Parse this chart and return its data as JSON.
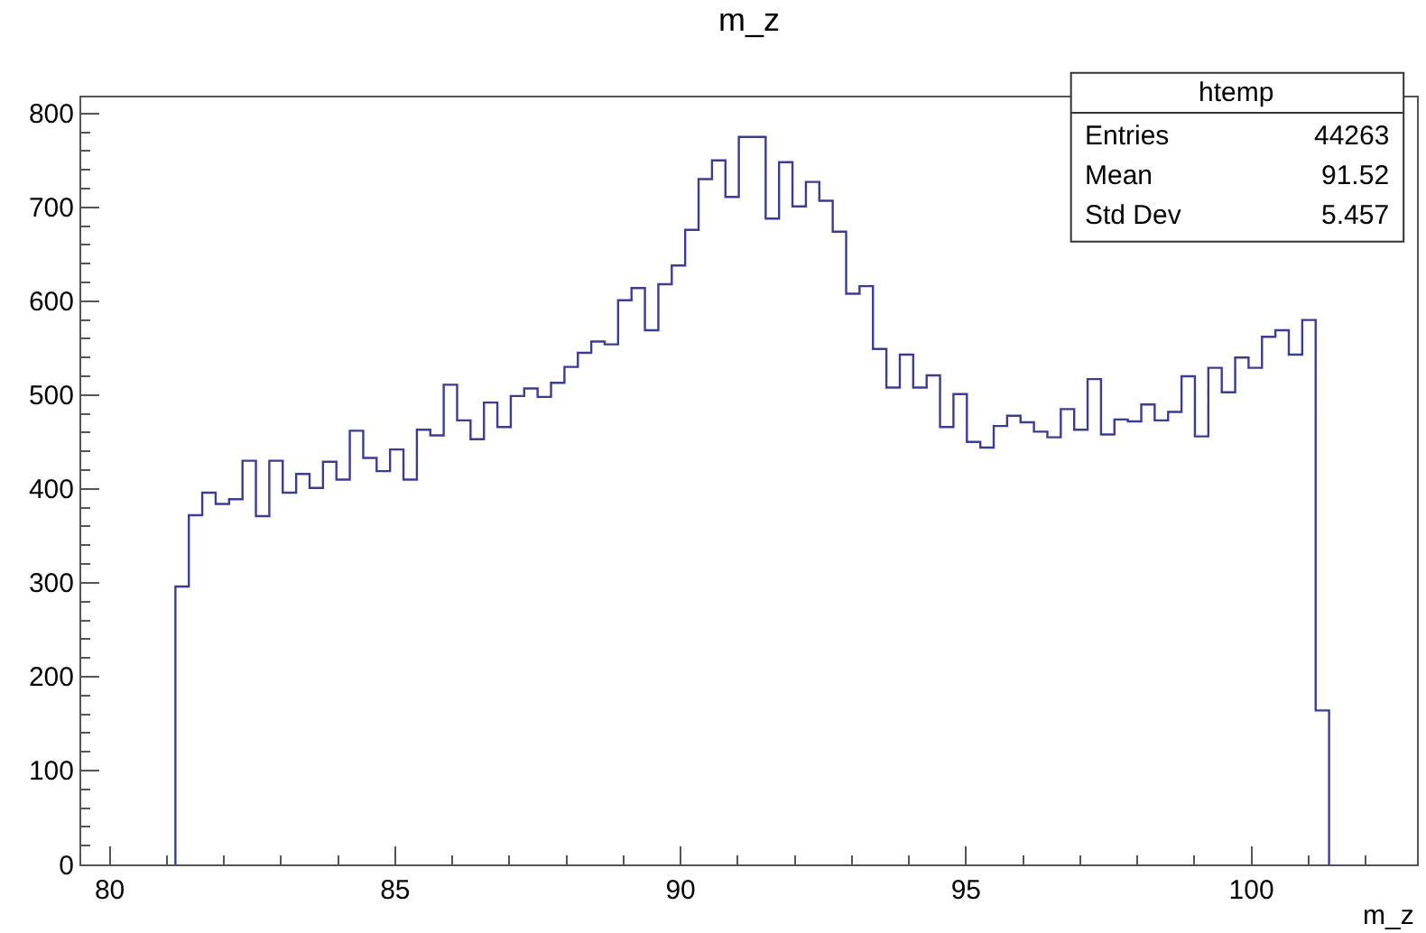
{
  "chart_data": {
    "type": "histogram",
    "title": "m_z",
    "xlabel": "m_z",
    "bins": [
      81.15,
      81.385,
      81.62,
      81.855,
      82.09,
      82.325,
      82.56,
      82.795,
      83.03,
      83.265,
      83.5,
      83.735,
      83.97,
      84.205,
      84.44,
      84.675,
      84.91,
      85.145,
      85.38,
      85.615,
      85.85,
      86.085,
      86.32,
      86.555,
      86.79,
      87.025,
      87.26,
      87.495,
      87.73,
      87.965,
      88.2,
      88.435,
      88.67,
      88.905,
      89.14,
      89.375,
      89.61,
      89.845,
      90.08,
      90.315,
      90.55,
      90.785,
      91.02,
      91.255,
      91.49,
      91.725,
      91.96,
      92.195,
      92.43,
      92.665,
      92.9,
      93.135,
      93.37,
      93.605,
      93.84,
      94.075,
      94.31,
      94.545,
      94.78,
      95.015,
      95.25,
      95.485,
      95.72,
      95.955,
      96.19,
      96.425,
      96.66,
      96.895,
      97.13,
      97.365,
      97.6,
      97.835,
      98.07,
      98.305,
      98.54,
      98.775,
      99.01,
      99.245,
      99.48,
      99.715,
      99.95,
      100.185,
      100.42,
      100.655,
      100.89,
      101.125,
      101.36
    ],
    "values": [
      296,
      372,
      396,
      384,
      389,
      430,
      371,
      430,
      396,
      416,
      401,
      429,
      410,
      462,
      433,
      419,
      442,
      410,
      463,
      457,
      511,
      473,
      453,
      492,
      466,
      499,
      507,
      498,
      513,
      530,
      545,
      557,
      554,
      601,
      614,
      569,
      618,
      638,
      676,
      730,
      750,
      711,
      775,
      775,
      688,
      748,
      701,
      727,
      707,
      674,
      608,
      616,
      549,
      508,
      543,
      508,
      521,
      466,
      501,
      450,
      444,
      467,
      478,
      471,
      461,
      455,
      485,
      463,
      517,
      458,
      474,
      472,
      490,
      473,
      482,
      520,
      456,
      529,
      503,
      540,
      529,
      562,
      569,
      543,
      580,
      164
    ],
    "color": "#3c3c94",
    "xlim": [
      79.5,
      102.9
    ],
    "xticks": [
      80,
      85,
      90,
      95,
      100
    ],
    "ylim": [
      0,
      817
    ],
    "yticks": [
      0,
      100,
      200,
      300,
      400,
      500,
      600,
      700,
      800
    ],
    "annotations": [
      "htemp",
      "Entries",
      "44263",
      "Mean",
      "91.52",
      "Std Dev",
      "5.457"
    ]
  }
}
